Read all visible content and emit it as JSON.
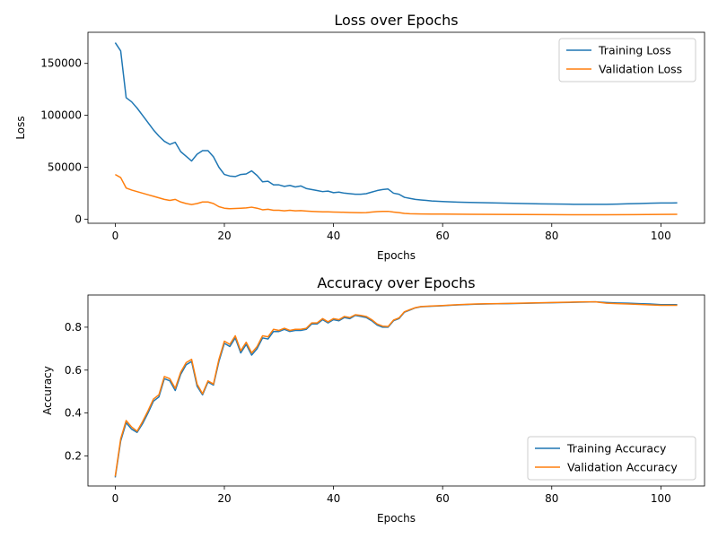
{
  "chart_data": [
    {
      "type": "line",
      "title": "Loss over Epochs",
      "xlabel": "Epochs",
      "ylabel": "Loss",
      "xlim": [
        -5,
        108
      ],
      "ylim": [
        -4000,
        180000
      ],
      "xticks": [
        0,
        20,
        40,
        60,
        80,
        100
      ],
      "yticks": [
        0,
        50000,
        100000,
        150000
      ],
      "grid": false,
      "legend_position": "top-right",
      "series": [
        {
          "name": "Training Loss",
          "color": "#1f77b4",
          "x": [
            0,
            1,
            2,
            3,
            4,
            5,
            6,
            7,
            8,
            9,
            10,
            11,
            12,
            13,
            14,
            15,
            16,
            17,
            18,
            19,
            20,
            21,
            22,
            23,
            24,
            25,
            26,
            27,
            28,
            29,
            30,
            31,
            32,
            33,
            34,
            35,
            36,
            37,
            38,
            39,
            40,
            41,
            42,
            43,
            44,
            45,
            46,
            47,
            48,
            49,
            50,
            51,
            52,
            53,
            54,
            55,
            56,
            57,
            58,
            60,
            62,
            64,
            66,
            68,
            70,
            72,
            74,
            76,
            78,
            80,
            82,
            84,
            86,
            88,
            90,
            92,
            94,
            96,
            98,
            100,
            102,
            103
          ],
          "values": [
            170000,
            162000,
            117000,
            113000,
            107000,
            100000,
            93000,
            86000,
            80000,
            75000,
            72000,
            74000,
            65000,
            60500,
            56000,
            62500,
            66000,
            66000,
            60000,
            50000,
            43000,
            41500,
            41000,
            43000,
            43500,
            46500,
            42000,
            36000,
            36500,
            33000,
            33000,
            31500,
            32500,
            31000,
            32000,
            29500,
            28500,
            27500,
            26500,
            27000,
            25500,
            26000,
            25000,
            24500,
            24000,
            24000,
            24500,
            26000,
            27500,
            28500,
            29000,
            25000,
            24000,
            21000,
            20000,
            19000,
            18500,
            18000,
            17500,
            17000,
            16500,
            16200,
            16000,
            15800,
            15500,
            15300,
            15100,
            14900,
            14700,
            14600,
            14500,
            14300,
            14200,
            14200,
            14300,
            14500,
            14800,
            15000,
            15300,
            15500,
            15500,
            15600
          ]
        },
        {
          "name": "Validation Loss",
          "color": "#ff7f0e",
          "x": [
            0,
            1,
            2,
            3,
            4,
            5,
            6,
            7,
            8,
            9,
            10,
            11,
            12,
            13,
            14,
            15,
            16,
            17,
            18,
            19,
            20,
            21,
            22,
            23,
            24,
            25,
            26,
            27,
            28,
            29,
            30,
            31,
            32,
            33,
            34,
            35,
            36,
            37,
            38,
            39,
            40,
            41,
            42,
            43,
            44,
            45,
            46,
            47,
            48,
            49,
            50,
            51,
            52,
            53,
            54,
            56,
            58,
            60,
            65,
            70,
            75,
            80,
            85,
            90,
            95,
            100,
            103
          ],
          "values": [
            43000,
            40000,
            30000,
            28000,
            26500,
            25000,
            23500,
            22000,
            20500,
            19000,
            18000,
            19000,
            16500,
            15000,
            14000,
            15000,
            16500,
            16500,
            15000,
            12000,
            10500,
            10000,
            10200,
            10500,
            10800,
            11500,
            10500,
            9000,
            9500,
            8500,
            8500,
            8000,
            8500,
            8000,
            8200,
            7800,
            7500,
            7200,
            7000,
            7000,
            6800,
            6700,
            6600,
            6400,
            6300,
            6200,
            6300,
            6800,
            7200,
            7500,
            7500,
            6800,
            6300,
            5500,
            5200,
            5000,
            4900,
            4800,
            4600,
            4500,
            4400,
            4300,
            4200,
            4200,
            4300,
            4500,
            4600
          ]
        }
      ]
    },
    {
      "type": "line",
      "title": "Accuracy over Epochs",
      "xlabel": "Epochs",
      "ylabel": "Accuracy",
      "xlim": [
        -5,
        108
      ],
      "ylim": [
        0.06,
        0.95
      ],
      "xticks": [
        0,
        20,
        40,
        60,
        80,
        100
      ],
      "yticks": [
        0.2,
        0.4,
        0.6,
        0.8
      ],
      "grid": false,
      "legend_position": "bottom-right",
      "series": [
        {
          "name": "Training Accuracy",
          "color": "#1f77b4",
          "x": [
            0,
            1,
            2,
            3,
            4,
            5,
            6,
            7,
            8,
            9,
            10,
            11,
            12,
            13,
            14,
            15,
            16,
            17,
            18,
            19,
            20,
            21,
            22,
            23,
            24,
            25,
            26,
            27,
            28,
            29,
            30,
            31,
            32,
            33,
            34,
            35,
            36,
            37,
            38,
            39,
            40,
            41,
            42,
            43,
            44,
            45,
            46,
            47,
            48,
            49,
            50,
            51,
            52,
            53,
            54,
            55,
            56,
            58,
            60,
            62,
            64,
            66,
            68,
            70,
            72,
            74,
            76,
            78,
            80,
            82,
            84,
            86,
            88,
            90,
            92,
            94,
            96,
            98,
            100,
            102,
            103
          ],
          "values": [
            0.1,
            0.27,
            0.355,
            0.325,
            0.31,
            0.35,
            0.4,
            0.455,
            0.475,
            0.56,
            0.55,
            0.505,
            0.58,
            0.625,
            0.64,
            0.525,
            0.485,
            0.545,
            0.53,
            0.64,
            0.725,
            0.71,
            0.75,
            0.68,
            0.72,
            0.67,
            0.7,
            0.75,
            0.745,
            0.78,
            0.78,
            0.79,
            0.78,
            0.785,
            0.785,
            0.79,
            0.815,
            0.815,
            0.835,
            0.82,
            0.835,
            0.83,
            0.845,
            0.84,
            0.855,
            0.85,
            0.845,
            0.83,
            0.81,
            0.8,
            0.8,
            0.83,
            0.84,
            0.87,
            0.88,
            0.89,
            0.895,
            0.898,
            0.9,
            0.903,
            0.905,
            0.907,
            0.908,
            0.909,
            0.91,
            0.911,
            0.912,
            0.913,
            0.914,
            0.915,
            0.916,
            0.917,
            0.918,
            0.915,
            0.913,
            0.912,
            0.91,
            0.908,
            0.905,
            0.905,
            0.905
          ]
        },
        {
          "name": "Validation Accuracy",
          "color": "#ff7f0e",
          "x": [
            0,
            1,
            2,
            3,
            4,
            5,
            6,
            7,
            8,
            9,
            10,
            11,
            12,
            13,
            14,
            15,
            16,
            17,
            18,
            19,
            20,
            21,
            22,
            23,
            24,
            25,
            26,
            27,
            28,
            29,
            30,
            31,
            32,
            33,
            34,
            35,
            36,
            37,
            38,
            39,
            40,
            41,
            42,
            43,
            44,
            45,
            46,
            47,
            48,
            49,
            50,
            51,
            52,
            53,
            54,
            55,
            56,
            58,
            60,
            62,
            64,
            66,
            68,
            70,
            72,
            74,
            76,
            78,
            80,
            82,
            84,
            86,
            88,
            90,
            92,
            94,
            96,
            98,
            100,
            102,
            103
          ],
          "values": [
            0.105,
            0.28,
            0.365,
            0.335,
            0.315,
            0.36,
            0.41,
            0.465,
            0.485,
            0.57,
            0.56,
            0.515,
            0.59,
            0.635,
            0.65,
            0.535,
            0.49,
            0.55,
            0.535,
            0.65,
            0.735,
            0.72,
            0.76,
            0.69,
            0.73,
            0.68,
            0.71,
            0.76,
            0.755,
            0.79,
            0.785,
            0.795,
            0.785,
            0.79,
            0.79,
            0.795,
            0.82,
            0.82,
            0.84,
            0.825,
            0.84,
            0.835,
            0.85,
            0.845,
            0.858,
            0.855,
            0.85,
            0.835,
            0.815,
            0.805,
            0.803,
            0.833,
            0.843,
            0.872,
            0.882,
            0.891,
            0.896,
            0.899,
            0.901,
            0.904,
            0.906,
            0.908,
            0.909,
            0.91,
            0.911,
            0.912,
            0.913,
            0.914,
            0.915,
            0.916,
            0.917,
            0.918,
            0.918,
            0.912,
            0.91,
            0.908,
            0.906,
            0.904,
            0.902,
            0.902,
            0.902
          ]
        }
      ]
    }
  ]
}
